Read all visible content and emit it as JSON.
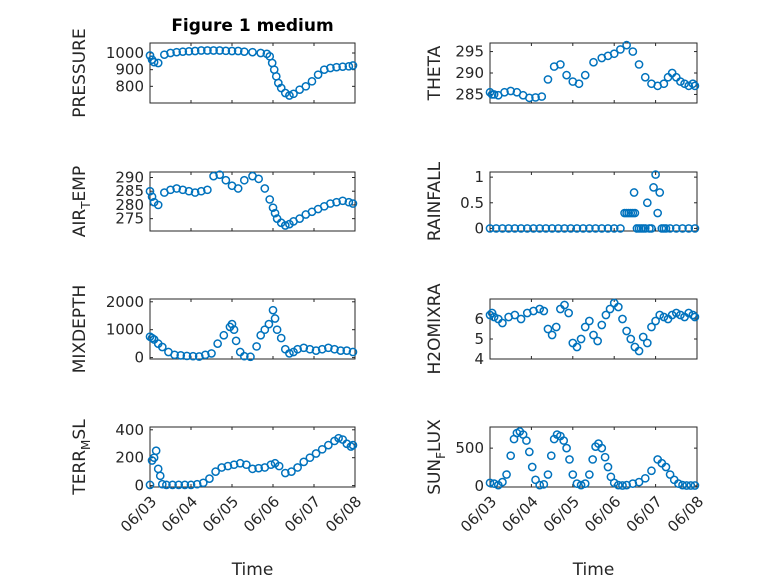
{
  "colors": {
    "marker": "#0072bd",
    "frame": "#262626",
    "background": "#ffffff"
  },
  "chart_data": [
    {
      "type": "scatter",
      "title": "Figure 1 medium",
      "ylabel": "PRESSURE",
      "xlabel": "",
      "x_tick_labels": false,
      "xlim": [
        0,
        5
      ],
      "ylim": [
        700,
        1060
      ],
      "yticks": [
        800,
        900,
        1000
      ],
      "ytick_labels": [
        "800",
        "900",
        "1000"
      ],
      "grid": "major and minor",
      "series": [
        {
          "x": [
            0.0,
            0.05,
            0.1,
            0.2,
            0.35,
            0.5,
            0.65,
            0.8,
            0.95,
            1.1,
            1.25,
            1.4,
            1.55,
            1.7,
            1.85,
            2.0,
            2.15,
            2.3,
            2.5,
            2.7,
            2.85,
            2.92,
            2.98,
            3.03,
            3.08,
            3.13,
            3.2,
            3.3,
            3.4,
            3.5,
            3.65,
            3.8,
            3.95,
            4.1,
            4.25,
            4.4,
            4.55,
            4.7,
            4.85,
            4.95
          ],
          "y": [
            985,
            960,
            945,
            940,
            990,
            1000,
            1005,
            1008,
            1010,
            1012,
            1015,
            1015,
            1015,
            1015,
            1013,
            1012,
            1012,
            1008,
            1005,
            1000,
            995,
            980,
            940,
            900,
            860,
            820,
            790,
            760,
            745,
            755,
            780,
            800,
            830,
            870,
            900,
            910,
            915,
            918,
            920,
            925
          ]
        }
      ]
    },
    {
      "type": "scatter",
      "title": "",
      "ylabel": "THETA",
      "xlabel": "",
      "x_tick_labels": false,
      "xlim": [
        0,
        5
      ],
      "ylim": [
        283,
        297
      ],
      "yticks": [
        285,
        290,
        295
      ],
      "ytick_labels": [
        "285",
        "290",
        "295"
      ],
      "grid": "major and minor",
      "series": [
        {
          "x": [
            0.0,
            0.05,
            0.1,
            0.2,
            0.35,
            0.5,
            0.65,
            0.8,
            0.95,
            1.1,
            1.25,
            1.4,
            1.55,
            1.7,
            1.85,
            2.0,
            2.15,
            2.3,
            2.5,
            2.7,
            2.85,
            3.0,
            3.15,
            3.3,
            3.45,
            3.6,
            3.75,
            3.9,
            4.05,
            4.2,
            4.3,
            4.4,
            4.5,
            4.6,
            4.7,
            4.8,
            4.9,
            4.95
          ],
          "y": [
            285.5,
            285,
            285,
            284.8,
            285.5,
            285.8,
            285.5,
            284.8,
            284.2,
            284.3,
            284.5,
            288.5,
            291.5,
            292,
            289.5,
            288,
            287.5,
            289.5,
            292.5,
            293.5,
            294,
            294.5,
            295.5,
            296.5,
            295,
            292,
            289,
            287.5,
            287,
            287.5,
            289,
            290,
            289,
            288,
            287.5,
            287,
            287.5,
            287
          ]
        }
      ]
    },
    {
      "type": "scatter",
      "title": "",
      "ylabel": "AIR_TEMP",
      "ylabel_subscript": "T",
      "xlabel": "",
      "x_tick_labels": false,
      "xlim": [
        0,
        5
      ],
      "ylim": [
        270.5,
        292
      ],
      "yticks": [
        275,
        280,
        285,
        290
      ],
      "ytick_labels": [
        "275",
        "280",
        "285",
        "290"
      ],
      "grid": "major and minor",
      "series": [
        {
          "x": [
            0.0,
            0.05,
            0.1,
            0.2,
            0.35,
            0.5,
            0.65,
            0.8,
            0.95,
            1.1,
            1.25,
            1.4,
            1.55,
            1.7,
            1.85,
            2.0,
            2.15,
            2.3,
            2.5,
            2.65,
            2.8,
            2.92,
            3.0,
            3.05,
            3.1,
            3.2,
            3.3,
            3.4,
            3.5,
            3.65,
            3.8,
            3.95,
            4.1,
            4.25,
            4.4,
            4.55,
            4.7,
            4.85,
            4.95
          ],
          "y": [
            285,
            283,
            281,
            280,
            284.5,
            285.5,
            286,
            285.5,
            285,
            284.5,
            285,
            285.5,
            290.5,
            291,
            289,
            287,
            286,
            289,
            290.5,
            289.5,
            286,
            282,
            279,
            277,
            275,
            273.5,
            272.5,
            273,
            274,
            275,
            276.5,
            277.5,
            278.5,
            279.5,
            280.5,
            281,
            281.5,
            281,
            280.5
          ]
        }
      ]
    },
    {
      "type": "scatter",
      "title": "",
      "ylabel": "RAINFALL",
      "xlabel": "",
      "x_tick_labels": false,
      "xlim": [
        0,
        5
      ],
      "ylim": [
        -0.05,
        1.1
      ],
      "yticks": [
        0,
        0.5,
        1
      ],
      "ytick_labels": [
        "0",
        "0.5",
        "1"
      ],
      "grid": "major and minor",
      "series": [
        {
          "x": [
            0.0,
            0.15,
            0.3,
            0.45,
            0.6,
            0.75,
            0.9,
            1.05,
            1.2,
            1.35,
            1.5,
            1.65,
            1.8,
            1.95,
            2.1,
            2.25,
            2.4,
            2.55,
            2.7,
            2.85,
            3.0,
            3.15,
            3.25,
            3.3,
            3.35,
            3.4,
            3.45,
            3.48,
            3.5,
            3.55,
            3.6,
            3.65,
            3.7,
            3.75,
            3.8,
            3.85,
            3.9,
            3.95,
            4.0,
            4.05,
            4.1,
            4.15,
            4.2,
            4.25,
            4.35,
            4.5,
            4.65,
            4.8,
            4.95
          ],
          "y": [
            0,
            0,
            0,
            0,
            0,
            0,
            0,
            0,
            0,
            0,
            0,
            0,
            0,
            0,
            0,
            0,
            0,
            0,
            0,
            0,
            0,
            0,
            0.3,
            0.3,
            0.3,
            0.3,
            0.3,
            0.7,
            0.3,
            0,
            0,
            0,
            0,
            0,
            0.5,
            0,
            0,
            0.8,
            1.05,
            0.3,
            0.7,
            0,
            0,
            0,
            0,
            0,
            0,
            0,
            0
          ]
        }
      ]
    },
    {
      "type": "scatter",
      "title": "",
      "ylabel": "MIXDEPTH",
      "xlabel": "",
      "x_tick_labels": false,
      "xlim": [
        0,
        5
      ],
      "ylim": [
        -50,
        2100
      ],
      "yticks": [
        0,
        1000,
        2000
      ],
      "ytick_labels": [
        "0",
        "1000",
        "2000"
      ],
      "grid": "major and minor",
      "series": [
        {
          "x": [
            0.0,
            0.05,
            0.1,
            0.2,
            0.3,
            0.45,
            0.6,
            0.75,
            0.9,
            1.05,
            1.2,
            1.35,
            1.5,
            1.65,
            1.8,
            1.95,
            2.0,
            2.05,
            2.1,
            2.2,
            2.3,
            2.45,
            2.6,
            2.7,
            2.8,
            2.9,
            3.0,
            3.05,
            3.1,
            3.2,
            3.3,
            3.4,
            3.5,
            3.6,
            3.75,
            3.9,
            4.05,
            4.2,
            4.35,
            4.5,
            4.65,
            4.8,
            4.95
          ],
          "y": [
            750,
            700,
            650,
            500,
            380,
            200,
            100,
            80,
            60,
            50,
            40,
            100,
            150,
            500,
            800,
            1100,
            1200,
            1000,
            600,
            200,
            50,
            30,
            400,
            800,
            1000,
            1200,
            1700,
            1400,
            1000,
            700,
            300,
            150,
            200,
            300,
            350,
            300,
            250,
            300,
            350,
            300,
            250,
            250,
            200
          ]
        }
      ]
    },
    {
      "type": "scatter",
      "title": "",
      "ylabel": "H2OMIXRA",
      "xlabel": "",
      "x_tick_labels": false,
      "xlim": [
        0,
        5
      ],
      "ylim": [
        4,
        7
      ],
      "yticks": [
        4,
        5,
        6
      ],
      "ytick_labels": [
        "4",
        "5",
        "6"
      ],
      "grid": "major and minor",
      "series": [
        {
          "x": [
            0.0,
            0.05,
            0.1,
            0.2,
            0.3,
            0.45,
            0.6,
            0.75,
            0.9,
            1.05,
            1.2,
            1.3,
            1.4,
            1.5,
            1.6,
            1.7,
            1.8,
            1.9,
            2.0,
            2.1,
            2.2,
            2.3,
            2.4,
            2.5,
            2.6,
            2.7,
            2.8,
            2.9,
            3.0,
            3.1,
            3.2,
            3.3,
            3.4,
            3.5,
            3.6,
            3.7,
            3.8,
            3.9,
            4.0,
            4.1,
            4.2,
            4.3,
            4.4,
            4.5,
            4.6,
            4.7,
            4.8,
            4.9,
            4.95
          ],
          "y": [
            6.2,
            6.3,
            6.1,
            6.0,
            5.8,
            6.1,
            6.2,
            6.0,
            6.3,
            6.4,
            6.5,
            6.4,
            5.5,
            5.2,
            5.6,
            6.5,
            6.7,
            6.3,
            4.8,
            4.6,
            5.0,
            5.6,
            5.9,
            5.2,
            4.9,
            5.7,
            6.2,
            6.5,
            6.8,
            6.6,
            6.0,
            5.4,
            5.0,
            4.6,
            4.4,
            5.1,
            4.8,
            5.6,
            5.9,
            6.2,
            6.1,
            6.0,
            6.2,
            6.3,
            6.2,
            6.1,
            6.3,
            6.2,
            6.1
          ]
        }
      ]
    },
    {
      "type": "scatter",
      "title": "",
      "ylabel": "TERR_MSL",
      "ylabel_subscript": "M",
      "xlabel": "Time",
      "x_tick_labels": true,
      "xlim": [
        0,
        5
      ],
      "ylim": [
        -10,
        420
      ],
      "yticks": [
        0,
        200,
        400
      ],
      "ytick_labels": [
        "0",
        "200",
        "400"
      ],
      "grid": "major and minor",
      "series": [
        {
          "x": [
            0.0,
            0.05,
            0.1,
            0.15,
            0.2,
            0.25,
            0.3,
            0.4,
            0.55,
            0.7,
            0.85,
            1.0,
            1.15,
            1.3,
            1.45,
            1.6,
            1.75,
            1.9,
            2.05,
            2.2,
            2.35,
            2.5,
            2.65,
            2.8,
            2.95,
            3.05,
            3.15,
            3.3,
            3.45,
            3.6,
            3.75,
            3.9,
            4.05,
            4.2,
            4.35,
            4.5,
            4.6,
            4.7,
            4.8,
            4.9,
            4.95
          ],
          "y": [
            5,
            180,
            200,
            250,
            120,
            70,
            10,
            5,
            5,
            5,
            5,
            5,
            10,
            20,
            50,
            100,
            130,
            140,
            150,
            160,
            150,
            120,
            125,
            130,
            150,
            160,
            140,
            90,
            100,
            130,
            170,
            200,
            230,
            260,
            290,
            320,
            340,
            330,
            300,
            280,
            290
          ]
        }
      ]
    },
    {
      "type": "scatter",
      "title": "",
      "ylabel": "SUN_FLUX",
      "ylabel_subscript": "F",
      "xlabel": "Time",
      "x_tick_labels": true,
      "xlim": [
        0,
        5
      ],
      "ylim": [
        -15,
        780
      ],
      "yticks": [
        0,
        500
      ],
      "ytick_labels": [
        "0",
        "500"
      ],
      "grid": "major and minor",
      "series": [
        {
          "x": [
            0.0,
            0.1,
            0.2,
            0.3,
            0.4,
            0.5,
            0.58,
            0.65,
            0.72,
            0.8,
            0.88,
            0.95,
            1.02,
            1.1,
            1.2,
            1.3,
            1.4,
            1.48,
            1.55,
            1.62,
            1.7,
            1.78,
            1.85,
            1.92,
            2.0,
            2.1,
            2.2,
            2.3,
            2.4,
            2.48,
            2.55,
            2.62,
            2.7,
            2.78,
            2.85,
            2.92,
            3.0,
            3.1,
            3.2,
            3.3,
            3.45,
            3.6,
            3.75,
            3.9,
            4.05,
            4.15,
            4.25,
            4.35,
            4.45,
            4.55,
            4.65,
            4.75,
            4.85,
            4.95
          ],
          "y": [
            40,
            30,
            10,
            50,
            150,
            400,
            620,
            700,
            720,
            680,
            600,
            450,
            250,
            80,
            10,
            20,
            150,
            400,
            620,
            680,
            660,
            600,
            500,
            350,
            150,
            30,
            10,
            30,
            150,
            350,
            520,
            560,
            500,
            380,
            250,
            120,
            40,
            10,
            5,
            10,
            30,
            50,
            100,
            200,
            350,
            300,
            250,
            150,
            80,
            30,
            10,
            5,
            5,
            5
          ]
        }
      ]
    }
  ],
  "xaxis": {
    "tick_values": [
      0,
      1,
      2,
      3,
      4,
      5
    ],
    "tick_labels": [
      "06/03",
      "06/04",
      "06/05",
      "06/06",
      "06/07",
      "06/08"
    ]
  }
}
